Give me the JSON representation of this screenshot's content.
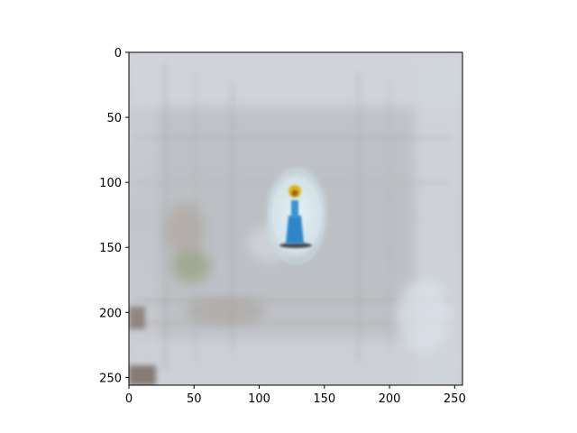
{
  "chart_data": {
    "type": "heatmap",
    "title": "",
    "xlabel": "",
    "ylabel": "",
    "xlim": [
      0,
      256
    ],
    "ylim": [
      256,
      0
    ],
    "x_ticks": [
      0,
      50,
      100,
      150,
      200,
      250
    ],
    "y_ticks": [
      0,
      50,
      100,
      150,
      200,
      250
    ],
    "x_tick_labels": [
      "0",
      "50",
      "100",
      "150",
      "200",
      "250"
    ],
    "y_tick_labels": [
      "0",
      "50",
      "100",
      "150",
      "200",
      "250"
    ],
    "grid": false,
    "image": {
      "width": 256,
      "height": 256,
      "description_colors": {
        "background": "#c9cdd3",
        "inner_square": "#b9bcc0",
        "light_border": "#d7dbe1",
        "dark_corner": "#7a6a60",
        "green_patch": "#8f9c74",
        "glow": "#d9e8ee",
        "figure_body": "#2f86c8",
        "figure_head": "#e0b21e",
        "shadow": "#2b2d36"
      }
    }
  }
}
